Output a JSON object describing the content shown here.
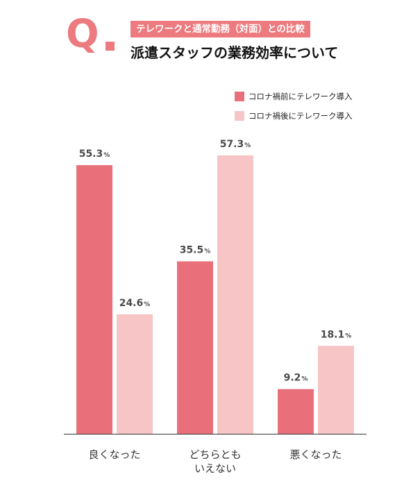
{
  "header": {
    "q_mark": "Q",
    "subtitle": "テレワークと通常勤務（対面）との比較",
    "title": "派遣スタッフの業務効率について"
  },
  "colors": {
    "accent": "#ec7a7e",
    "before": "#e9707a",
    "after": "#f7c5c5"
  },
  "chart_data": {
    "type": "bar",
    "title": "派遣スタッフの業務効率について",
    "subtitle": "テレワークと通常勤務（対面）との比較",
    "categories": [
      [
        "良くなった"
      ],
      [
        "どちらとも",
        "いえない"
      ],
      [
        "悪くなった"
      ]
    ],
    "unit": "%",
    "series": [
      {
        "name": "コロナ禍前にテレワーク導入",
        "values": [
          55.3,
          35.5,
          9.2
        ]
      },
      {
        "name": "コロナ禍後にテレワーク導入",
        "values": [
          24.6,
          57.3,
          18.1
        ]
      }
    ],
    "ylim": [
      0,
      60
    ],
    "grid": false,
    "legend_position": "top-right"
  }
}
